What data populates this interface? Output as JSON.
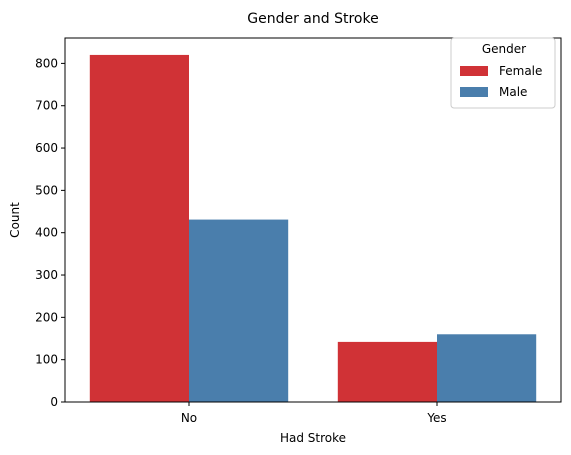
{
  "chart_data": {
    "type": "bar",
    "title": "Gender and Stroke",
    "xlabel": "Had Stroke",
    "ylabel": "Count",
    "categories": [
      "No",
      "Yes"
    ],
    "series": [
      {
        "name": "Female",
        "values": [
          820,
          142
        ],
        "color": "#d03236"
      },
      {
        "name": "Male",
        "values": [
          431,
          160
        ],
        "color": "#4a7eac"
      }
    ],
    "ylim": [
      0,
      860
    ],
    "yticks": [
      0,
      100,
      200,
      300,
      400,
      500,
      600,
      700,
      800
    ],
    "grid": false,
    "legend": {
      "title": "Gender",
      "position": "top-right"
    }
  }
}
